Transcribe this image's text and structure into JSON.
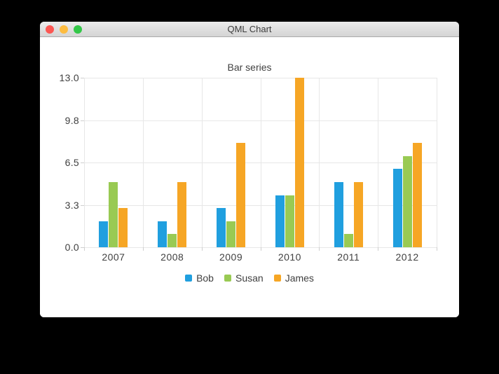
{
  "window": {
    "title": "QML Chart"
  },
  "chart_data": {
    "type": "bar",
    "title": "Bar series",
    "categories": [
      "2007",
      "2008",
      "2009",
      "2010",
      "2011",
      "2012"
    ],
    "series": [
      {
        "name": "Bob",
        "color": "#209fdf",
        "values": [
          2,
          2,
          3,
          4,
          5,
          6
        ]
      },
      {
        "name": "Susan",
        "color": "#99ca53",
        "values": [
          5,
          1,
          2,
          4,
          1,
          7
        ]
      },
      {
        "name": "James",
        "color": "#f6a625",
        "values": [
          3,
          5,
          8,
          13,
          5,
          8
        ]
      }
    ],
    "y_ticks": [
      "13.0",
      "9.8",
      "6.5",
      "3.3",
      "0.0"
    ],
    "ylim": [
      0,
      13
    ],
    "grid": true,
    "legend_position": "bottom"
  },
  "colors": {
    "axis_text": "#404040",
    "gridline": "#e7e7e7",
    "tick": "#cfcfcf",
    "traffic_red": "#fc5753",
    "traffic_yellow": "#fdbc40",
    "traffic_green": "#33c748"
  }
}
